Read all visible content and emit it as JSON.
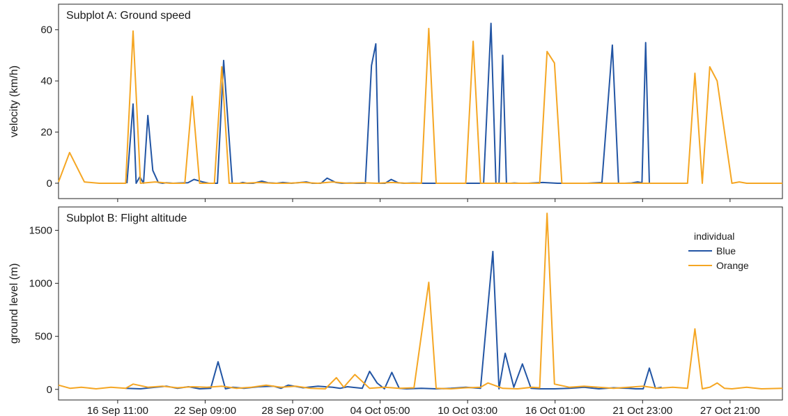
{
  "chart_data": [
    {
      "type": "line",
      "title": "Subplot A: Ground speed",
      "xlabel": "",
      "ylabel": "velocity (km/h)",
      "ylim": [
        -6,
        70
      ],
      "yticks": [
        0,
        20,
        40,
        60
      ],
      "x_range": [
        "2015-09-12 11:00",
        "2015-10-31 10:00"
      ],
      "xticks": [
        "2015-09-16 11:00",
        "2015-09-22 09:00",
        "2015-09-28 07:00",
        "2015-10-04 05:00",
        "2015-10-10 03:00",
        "2015-10-16 01:00",
        "2015-10-21 23:00",
        "2015-10-27 21:00"
      ],
      "xtick_labels": [
        "16 Sep 11:00",
        "22 Sep 09:00",
        "28 Sep 07:00",
        "04 Oct 05:00",
        "10 Oct 03:00",
        "16 Oct 01:00",
        "21 Oct 23:00",
        "27 Oct 21:00"
      ],
      "grid": false,
      "series": [
        {
          "name": "Blue",
          "color": "#2255a4",
          "x": [
            "2015-09-17 02:00",
            "2015-09-17 12:00",
            "2015-09-17 17:00",
            "2015-09-17 23:00",
            "2015-09-18 05:00",
            "2015-09-18 12:00",
            "2015-09-18 20:00",
            "2015-09-19 05:00",
            "2015-09-19 12:00",
            "2015-09-19 18:00",
            "2015-09-20 05:00",
            "2015-09-20 15:00",
            "2015-09-21 05:00",
            "2015-09-21 15:00",
            "2015-09-22 05:00",
            "2015-09-22 15:00",
            "2015-09-23 05:00",
            "2015-09-23 15:00",
            "2015-09-24 05:00",
            "2015-09-24 11:00",
            "2015-09-24 17:00",
            "2015-09-24 22:00",
            "2015-09-25 05:00",
            "2015-09-25 15:00",
            "2015-09-26 05:00",
            "2015-09-26 15:00",
            "2015-09-27 05:00",
            "2015-09-27 15:00",
            "2015-09-28 05:00",
            "2015-09-28 15:00",
            "2015-09-29 05:00",
            "2015-09-29 15:00",
            "2015-09-30 05:00",
            "2015-09-30 15:00",
            "2015-10-01 05:00",
            "2015-10-01 15:00",
            "2015-10-02 05:00",
            "2015-10-02 15:00",
            "2015-10-03 05:00",
            "2015-10-03 15:00",
            "2015-10-03 22:00",
            "2015-10-04 03:00",
            "2015-10-04 13:00",
            "2015-10-04 23:00",
            "2015-10-05 10:00",
            "2015-10-05 20:00",
            "2015-10-06 10:00",
            "2015-10-07 05:00",
            "2015-10-08 05:00",
            "2015-10-09 05:00",
            "2015-10-10 05:00",
            "2015-10-11 05:00",
            "2015-10-11 17:00",
            "2015-10-12 01:00",
            "2015-10-12 06:00",
            "2015-10-12 12:00",
            "2015-10-12 18:00",
            "2015-10-13 01:00",
            "2015-10-13 07:00",
            "2015-10-13 14:00",
            "2015-10-14 05:00",
            "2015-10-15 05:00",
            "2015-10-16 05:00",
            "2015-10-17 05:00",
            "2015-10-18 05:00",
            "2015-10-19 05:00",
            "2015-10-19 22:00",
            "2015-10-20 08:00",
            "2015-10-20 18:00",
            "2015-10-21 05:00",
            "2015-10-21 15:00",
            "2015-10-21 22:00",
            "2015-10-22 04:00",
            "2015-10-22 10:00"
          ],
          "y": [
            0.0,
            31,
            0.0,
            2.5,
            0.0,
            26.5,
            5,
            0.3,
            0.0,
            0.2,
            0.0,
            0.1,
            0.2,
            1.5,
            0.5,
            0.0,
            0.0,
            48,
            0.0,
            0.0,
            0.0,
            0.3,
            0.0,
            0.0,
            0.8,
            0.2,
            0.0,
            0.3,
            0.0,
            0.2,
            0.5,
            0.0,
            0.0,
            2.0,
            0.3,
            0.0,
            0.1,
            0.0,
            0.0,
            46,
            54.5,
            0.0,
            0.0,
            1.5,
            0.2,
            0.0,
            0.1,
            0.0,
            0.0,
            0.0,
            0.0,
            0.0,
            62.5,
            0.0,
            0.0,
            50,
            0.0,
            0.0,
            0.1,
            0.0,
            0.0,
            0.3,
            0.0,
            0.0,
            0.0,
            0.3,
            54,
            0.0,
            0.0,
            0.1,
            0.5,
            0.2,
            55,
            0.0
          ]
        },
        {
          "name": "Orange",
          "color": "#f5a623",
          "x": [
            "2015-09-12 11:00",
            "2015-09-13 05:00",
            "2015-09-14 05:00",
            "2015-09-15 05:00",
            "2015-09-16 05:00",
            "2015-09-17 00:00",
            "2015-09-17 12:00",
            "2015-09-18 00:00",
            "2015-09-19 00:00",
            "2015-09-20 00:00",
            "2015-09-21 00:00",
            "2015-09-21 12:00",
            "2015-09-22 00:00",
            "2015-09-23 00:00",
            "2015-09-23 12:00",
            "2015-09-24 00:00",
            "2015-09-25 00:00",
            "2015-09-26 00:00",
            "2015-09-27 00:00",
            "2015-09-28 00:00",
            "2015-09-29 00:00",
            "2015-09-30 00:00",
            "2015-10-01 00:00",
            "2015-10-02 00:00",
            "2015-10-03 00:00",
            "2015-10-04 00:00",
            "2015-10-05 00:00",
            "2015-10-06 00:00",
            "2015-10-07 00:00",
            "2015-10-07 12:00",
            "2015-10-08 00:00",
            "2015-10-09 00:00",
            "2015-10-10 00:00",
            "2015-10-10 12:00",
            "2015-10-11 00:00",
            "2015-10-12 00:00",
            "2015-10-13 00:00",
            "2015-10-14 00:00",
            "2015-10-15 00:00",
            "2015-10-15 12:00",
            "2015-10-16 00:00",
            "2015-10-16 12:00",
            "2015-10-17 00:00",
            "2015-10-18 00:00",
            "2015-10-19 00:00",
            "2015-10-20 00:00",
            "2015-10-21 00:00",
            "2015-10-22 00:00",
            "2015-10-23 00:00",
            "2015-10-24 00:00",
            "2015-10-25 00:00",
            "2015-10-25 12:00",
            "2015-10-26 00:00",
            "2015-10-26 12:00",
            "2015-10-27 00:00",
            "2015-10-28 00:00",
            "2015-10-28 12:00",
            "2015-10-29 00:00",
            "2015-10-29 12:00",
            "2015-10-30 00:00",
            "2015-10-31 10:00"
          ],
          "y": [
            0.5,
            12,
            0.5,
            0.0,
            0.0,
            0.0,
            59.5,
            0.0,
            0.5,
            0.0,
            0.0,
            34,
            0.0,
            0.0,
            45.5,
            0.0,
            0.0,
            0.3,
            0.0,
            0.0,
            0.3,
            0.0,
            0.5,
            0.0,
            0.2,
            0.0,
            0.3,
            0.0,
            0.0,
            60.5,
            0.0,
            0.0,
            0.0,
            55.5,
            0.0,
            0.0,
            0.0,
            0.0,
            0.0,
            51.5,
            47,
            0.0,
            0.0,
            0.0,
            0.0,
            0.0,
            0.0,
            0.0,
            0.0,
            0.0,
            0.0,
            43,
            0.0,
            45.5,
            40,
            0.0,
            0.5,
            0.0,
            0.0,
            0.0,
            0.0
          ]
        }
      ]
    },
    {
      "type": "line",
      "title": "Subplot B: Flight altitude",
      "xlabel": "",
      "ylabel": "ground level (m)",
      "ylim": [
        -100,
        1720
      ],
      "yticks": [
        0,
        500,
        1000,
        1500
      ],
      "x_range": [
        "2015-09-12 11:00",
        "2015-10-31 10:00"
      ],
      "xticks": [
        "2015-09-16 11:00",
        "2015-09-22 09:00",
        "2015-09-28 07:00",
        "2015-10-04 05:00",
        "2015-10-10 03:00",
        "2015-10-16 01:00",
        "2015-10-21 23:00",
        "2015-10-27 21:00"
      ],
      "xtick_labels": [
        "16 Sep 11:00",
        "22 Sep 09:00",
        "28 Sep 07:00",
        "04 Oct 05:00",
        "10 Oct 03:00",
        "16 Oct 01:00",
        "21 Oct 23:00",
        "27 Oct 21:00"
      ],
      "grid": false,
      "legend": {
        "title": "individual",
        "placement": "upper-right",
        "entries": [
          "Blue",
          "Orange"
        ]
      },
      "series": [
        {
          "name": "Blue",
          "color": "#2255a4",
          "x": [
            "2015-09-17 00:00",
            "2015-09-18 00:00",
            "2015-09-19 00:00",
            "2015-09-19 18:00",
            "2015-09-20 12:00",
            "2015-09-21 06:00",
            "2015-09-22 00:00",
            "2015-09-22 18:00",
            "2015-09-23 06:00",
            "2015-09-23 18:00",
            "2015-09-24 06:00",
            "2015-09-25 00:00",
            "2015-09-26 00:00",
            "2015-09-27 00:00",
            "2015-09-27 12:00",
            "2015-09-28 00:00",
            "2015-09-29 00:00",
            "2015-09-30 00:00",
            "2015-10-01 00:00",
            "2015-10-01 12:00",
            "2015-10-02 00:00",
            "2015-10-03 00:00",
            "2015-10-03 12:00",
            "2015-10-04 00:00",
            "2015-10-04 12:00",
            "2015-10-05 00:00",
            "2015-10-05 12:00",
            "2015-10-06 00:00",
            "2015-10-07 00:00",
            "2015-10-08 00:00",
            "2015-10-09 00:00",
            "2015-10-10 00:00",
            "2015-10-11 00:00",
            "2015-10-11 20:00",
            "2015-10-12 06:00",
            "2015-10-12 16:00",
            "2015-10-13 06:00",
            "2015-10-13 20:00",
            "2015-10-14 10:00",
            "2015-10-15 00:00",
            "2015-10-16 00:00",
            "2015-10-17 00:00",
            "2015-10-18 00:00",
            "2015-10-19 00:00",
            "2015-10-20 00:00",
            "2015-10-21 00:00",
            "2015-10-21 12:00",
            "2015-10-22 00:00",
            "2015-10-22 10:00",
            "2015-10-22 20:00",
            "2015-10-23 06:00"
          ],
          "y": [
            10,
            5,
            20,
            30,
            10,
            25,
            5,
            10,
            260,
            5,
            20,
            10,
            25,
            30,
            10,
            40,
            15,
            30,
            20,
            10,
            25,
            10,
            170,
            60,
            5,
            160,
            10,
            5,
            10,
            5,
            10,
            20,
            10,
            1300,
            5,
            340,
            20,
            240,
            10,
            5,
            5,
            10,
            20,
            5,
            15,
            10,
            5,
            5,
            200,
            10,
            20
          ]
        },
        {
          "name": "Orange",
          "color": "#f5a623",
          "x": [
            "2015-09-12 11:00",
            "2015-09-13 06:00",
            "2015-09-14 00:00",
            "2015-09-15 00:00",
            "2015-09-16 00:00",
            "2015-09-17 00:00",
            "2015-09-17 12:00",
            "2015-09-18 12:00",
            "2015-09-19 12:00",
            "2015-09-20 12:00",
            "2015-09-21 12:00",
            "2015-09-22 12:00",
            "2015-09-23 12:00",
            "2015-09-24 12:00",
            "2015-09-25 12:00",
            "2015-09-26 12:00",
            "2015-09-27 12:00",
            "2015-09-28 12:00",
            "2015-09-29 12:00",
            "2015-09-30 12:00",
            "2015-10-01 06:00",
            "2015-10-01 18:00",
            "2015-10-02 12:00",
            "2015-10-03 12:00",
            "2015-10-04 12:00",
            "2015-10-05 12:00",
            "2015-10-06 12:00",
            "2015-10-07 12:00",
            "2015-10-08 00:00",
            "2015-10-09 00:00",
            "2015-10-10 00:00",
            "2015-10-11 00:00",
            "2015-10-11 12:00",
            "2015-10-12 12:00",
            "2015-10-13 12:00",
            "2015-10-14 12:00",
            "2015-10-15 00:00",
            "2015-10-15 12:00",
            "2015-10-16 00:00",
            "2015-10-17 00:00",
            "2015-10-18 00:00",
            "2015-10-19 00:00",
            "2015-10-20 00:00",
            "2015-10-21 00:00",
            "2015-10-22 00:00",
            "2015-10-23 00:00",
            "2015-10-24 00:00",
            "2015-10-25 00:00",
            "2015-10-25 12:00",
            "2015-10-26 00:00",
            "2015-10-26 12:00",
            "2015-10-27 00:00",
            "2015-10-27 12:00",
            "2015-10-28 00:00",
            "2015-10-29 00:00",
            "2015-10-30 00:00",
            "2015-10-31 10:00"
          ],
          "y": [
            40,
            10,
            20,
            5,
            20,
            10,
            50,
            20,
            30,
            15,
            25,
            20,
            30,
            10,
            20,
            40,
            20,
            30,
            10,
            5,
            110,
            20,
            140,
            10,
            20,
            10,
            15,
            1010,
            10,
            5,
            15,
            20,
            60,
            10,
            5,
            20,
            15,
            1660,
            50,
            20,
            30,
            20,
            10,
            20,
            30,
            10,
            20,
            10,
            570,
            5,
            20,
            60,
            10,
            5,
            20,
            5,
            10
          ]
        }
      ]
    }
  ]
}
